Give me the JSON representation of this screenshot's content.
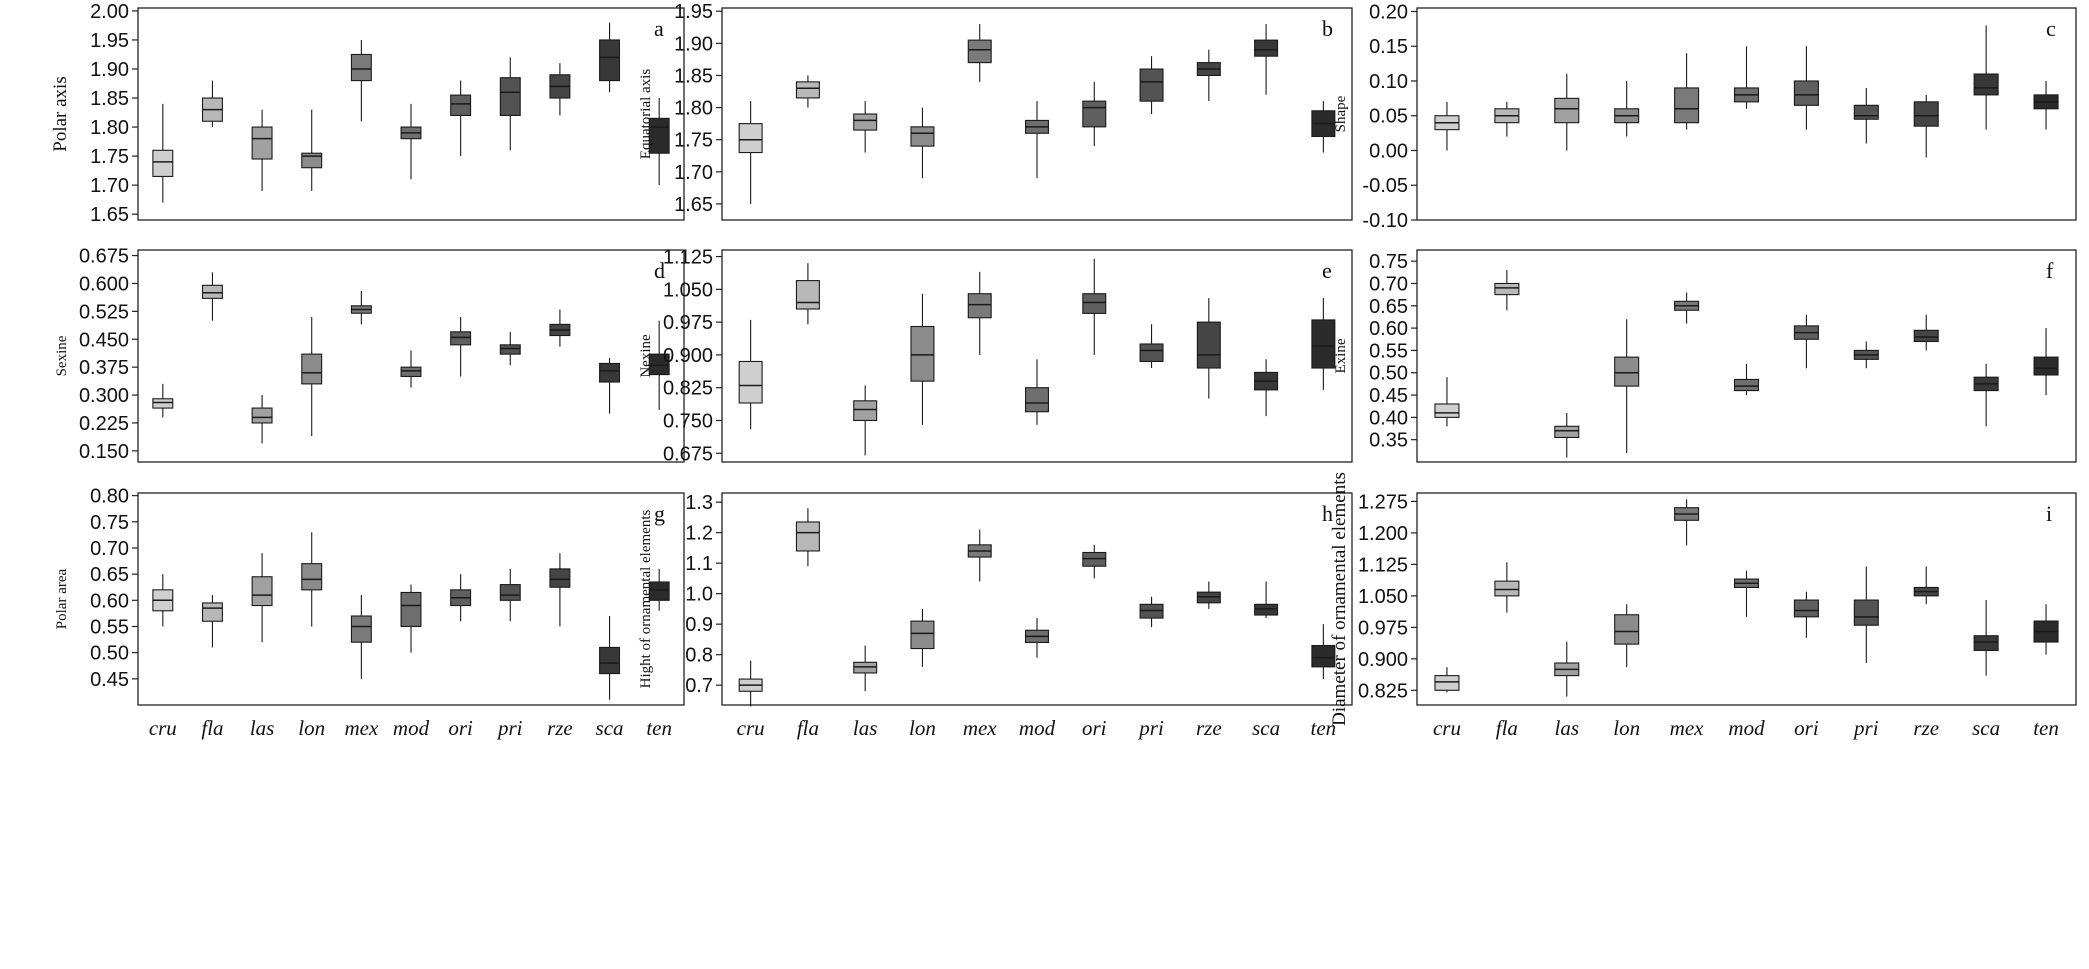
{
  "chart_data": [
    {
      "type": "box",
      "panel": "a",
      "ylabel": "Polar axis",
      "ylim": [
        1.64,
        2.005
      ],
      "yticks": [
        "1.65",
        "1.70",
        "1.75",
        "1.80",
        "1.85",
        "1.90",
        "1.95",
        "2.00"
      ],
      "categories": [
        "cru",
        "fla",
        "las",
        "lon",
        "mex",
        "mod",
        "ori",
        "pri",
        "rze",
        "sca",
        "ten"
      ],
      "boxes": [
        {
          "min": 1.67,
          "q1": 1.715,
          "median": 1.74,
          "q3": 1.76,
          "max": 1.84
        },
        {
          "min": 1.8,
          "q1": 1.81,
          "median": 1.83,
          "q3": 1.85,
          "max": 1.88
        },
        {
          "min": 1.69,
          "q1": 1.745,
          "median": 1.78,
          "q3": 1.8,
          "max": 1.83
        },
        {
          "min": 1.69,
          "q1": 1.73,
          "median": 1.75,
          "q3": 1.755,
          "max": 1.83
        },
        {
          "min": 1.81,
          "q1": 1.88,
          "median": 1.9,
          "q3": 1.925,
          "max": 1.95
        },
        {
          "min": 1.71,
          "q1": 1.78,
          "median": 1.79,
          "q3": 1.8,
          "max": 1.84
        },
        {
          "min": 1.75,
          "q1": 1.82,
          "median": 1.84,
          "q3": 1.855,
          "max": 1.88
        },
        {
          "min": 1.76,
          "q1": 1.82,
          "median": 1.86,
          "q3": 1.885,
          "max": 1.92
        },
        {
          "min": 1.82,
          "q1": 1.85,
          "median": 1.87,
          "q3": 1.89,
          "max": 1.91
        },
        {
          "min": 1.86,
          "q1": 1.88,
          "median": 1.92,
          "q3": 1.95,
          "max": 1.98
        },
        {
          "min": 1.7,
          "q1": 1.755,
          "median": 1.8,
          "q3": 1.815,
          "max": 1.85
        }
      ]
    },
    {
      "type": "box",
      "panel": "b",
      "ylabel": "Equatorial axis",
      "ylim": [
        1.625,
        1.955
      ],
      "yticks": [
        "1.65",
        "1.70",
        "1.75",
        "1.80",
        "1.85",
        "1.90",
        "1.95"
      ],
      "categories": [
        "cru",
        "fla",
        "las",
        "lon",
        "mex",
        "mod",
        "ori",
        "pri",
        "rze",
        "sca",
        "ten"
      ],
      "boxes": [
        {
          "min": 1.65,
          "q1": 1.73,
          "median": 1.75,
          "q3": 1.775,
          "max": 1.81
        },
        {
          "min": 1.8,
          "q1": 1.815,
          "median": 1.83,
          "q3": 1.84,
          "max": 1.85
        },
        {
          "min": 1.73,
          "q1": 1.765,
          "median": 1.78,
          "q3": 1.79,
          "max": 1.81
        },
        {
          "min": 1.69,
          "q1": 1.74,
          "median": 1.76,
          "q3": 1.77,
          "max": 1.8
        },
        {
          "min": 1.84,
          "q1": 1.87,
          "median": 1.89,
          "q3": 1.905,
          "max": 1.93
        },
        {
          "min": 1.69,
          "q1": 1.76,
          "median": 1.77,
          "q3": 1.78,
          "max": 1.81
        },
        {
          "min": 1.74,
          "q1": 1.77,
          "median": 1.8,
          "q3": 1.81,
          "max": 1.84
        },
        {
          "min": 1.79,
          "q1": 1.81,
          "median": 1.84,
          "q3": 1.86,
          "max": 1.88
        },
        {
          "min": 1.81,
          "q1": 1.85,
          "median": 1.86,
          "q3": 1.87,
          "max": 1.89
        },
        {
          "min": 1.82,
          "q1": 1.88,
          "median": 1.89,
          "q3": 1.905,
          "max": 1.93
        },
        {
          "min": 1.73,
          "q1": 1.755,
          "median": 1.775,
          "q3": 1.795,
          "max": 1.81
        }
      ]
    },
    {
      "type": "box",
      "panel": "c",
      "ylabel": "Shape",
      "ylim": [
        -0.1,
        0.205
      ],
      "yticks": [
        "-0.10",
        "-0.05",
        "0.00",
        "0.05",
        "0.10",
        "0.15",
        "0.20"
      ],
      "categories": [
        "cru",
        "fla",
        "las",
        "lon",
        "mex",
        "mod",
        "ori",
        "pri",
        "rze",
        "sca",
        "ten"
      ],
      "boxes": [
        {
          "min": 0.0,
          "q1": 0.03,
          "median": 0.04,
          "q3": 0.05,
          "max": 0.07
        },
        {
          "min": 0.02,
          "q1": 0.04,
          "median": 0.05,
          "q3": 0.06,
          "max": 0.07
        },
        {
          "min": 0.0,
          "q1": 0.04,
          "median": 0.06,
          "q3": 0.075,
          "max": 0.11
        },
        {
          "min": 0.02,
          "q1": 0.04,
          "median": 0.05,
          "q3": 0.06,
          "max": 0.1
        },
        {
          "min": 0.03,
          "q1": 0.04,
          "median": 0.06,
          "q3": 0.09,
          "max": 0.14
        },
        {
          "min": 0.06,
          "q1": 0.07,
          "median": 0.08,
          "q3": 0.09,
          "max": 0.15
        },
        {
          "min": 0.03,
          "q1": 0.065,
          "median": 0.08,
          "q3": 0.1,
          "max": 0.15
        },
        {
          "min": 0.01,
          "q1": 0.045,
          "median": 0.05,
          "q3": 0.065,
          "max": 0.09
        },
        {
          "min": -0.01,
          "q1": 0.035,
          "median": 0.05,
          "q3": 0.07,
          "max": 0.08
        },
        {
          "min": 0.03,
          "q1": 0.08,
          "median": 0.09,
          "q3": 0.11,
          "max": 0.18
        },
        {
          "min": 0.03,
          "q1": 0.06,
          "median": 0.07,
          "q3": 0.08,
          "max": 0.1
        }
      ]
    },
    {
      "type": "box",
      "panel": "d",
      "ylabel": "Sexine",
      "ylim": [
        0.12,
        0.69
      ],
      "yticks": [
        "0.150",
        "0.225",
        "0.300",
        "0.375",
        "0.450",
        "0.525",
        "0.600",
        "0.675"
      ],
      "categories": [
        "cru",
        "fla",
        "las",
        "lon",
        "mex",
        "mod",
        "ori",
        "pri",
        "rze",
        "sca",
        "ten"
      ],
      "boxes": [
        {
          "min": 0.24,
          "q1": 0.265,
          "median": 0.28,
          "q3": 0.29,
          "max": 0.33
        },
        {
          "min": 0.5,
          "q1": 0.56,
          "median": 0.575,
          "q3": 0.595,
          "max": 0.63
        },
        {
          "min": 0.17,
          "q1": 0.225,
          "median": 0.24,
          "q3": 0.265,
          "max": 0.3
        },
        {
          "min": 0.19,
          "q1": 0.33,
          "median": 0.36,
          "q3": 0.41,
          "max": 0.51
        },
        {
          "min": 0.49,
          "q1": 0.52,
          "median": 0.53,
          "q3": 0.54,
          "max": 0.58
        },
        {
          "min": 0.32,
          "q1": 0.35,
          "median": 0.365,
          "q3": 0.375,
          "max": 0.42
        },
        {
          "min": 0.35,
          "q1": 0.435,
          "median": 0.455,
          "q3": 0.47,
          "max": 0.51
        },
        {
          "min": 0.38,
          "q1": 0.41,
          "median": 0.425,
          "q3": 0.435,
          "max": 0.47
        },
        {
          "min": 0.43,
          "q1": 0.46,
          "median": 0.475,
          "q3": 0.49,
          "max": 0.53
        },
        {
          "min": 0.25,
          "q1": 0.335,
          "median": 0.365,
          "q3": 0.385,
          "max": 0.4
        },
        {
          "min": 0.26,
          "q1": 0.355,
          "median": 0.38,
          "q3": 0.41,
          "max": 0.5
        }
      ]
    },
    {
      "type": "box",
      "panel": "e",
      "ylabel": "Nexine",
      "ylim": [
        0.655,
        1.14
      ],
      "yticks": [
        "0.675",
        "0.750",
        "0.825",
        "0.900",
        "0.975",
        "1.050",
        "1.125"
      ],
      "categories": [
        "cru",
        "fla",
        "las",
        "lon",
        "mex",
        "mod",
        "ori",
        "pri",
        "rze",
        "sca",
        "ten"
      ],
      "boxes": [
        {
          "min": 0.73,
          "q1": 0.79,
          "median": 0.83,
          "q3": 0.885,
          "max": 0.98
        },
        {
          "min": 0.97,
          "q1": 1.005,
          "median": 1.02,
          "q3": 1.07,
          "max": 1.11
        },
        {
          "min": 0.67,
          "q1": 0.75,
          "median": 0.775,
          "q3": 0.795,
          "max": 0.83
        },
        {
          "min": 0.74,
          "q1": 0.84,
          "median": 0.9,
          "q3": 0.965,
          "max": 1.04
        },
        {
          "min": 0.9,
          "q1": 0.985,
          "median": 1.015,
          "q3": 1.04,
          "max": 1.09
        },
        {
          "min": 0.74,
          "q1": 0.77,
          "median": 0.79,
          "q3": 0.825,
          "max": 0.89
        },
        {
          "min": 0.9,
          "q1": 0.995,
          "median": 1.02,
          "q3": 1.04,
          "max": 1.12
        },
        {
          "min": 0.87,
          "q1": 0.885,
          "median": 0.91,
          "q3": 0.925,
          "max": 0.97
        },
        {
          "min": 0.8,
          "q1": 0.87,
          "median": 0.9,
          "q3": 0.975,
          "max": 1.03
        },
        {
          "min": 0.76,
          "q1": 0.82,
          "median": 0.84,
          "q3": 0.86,
          "max": 0.89
        },
        {
          "min": 0.82,
          "q1": 0.87,
          "median": 0.92,
          "q3": 0.98,
          "max": 1.03
        }
      ]
    },
    {
      "type": "box",
      "panel": "f",
      "ylabel": "Exine",
      "ylim": [
        0.3,
        0.775
      ],
      "yticks": [
        "0.35",
        "0.40",
        "0.45",
        "0.50",
        "0.55",
        "0.60",
        "0.65",
        "0.70",
        "0.75"
      ],
      "categories": [
        "cru",
        "fla",
        "las",
        "lon",
        "mex",
        "mod",
        "ori",
        "pri",
        "rze",
        "sca",
        "ten"
      ],
      "boxes": [
        {
          "min": 0.38,
          "q1": 0.4,
          "median": 0.41,
          "q3": 0.43,
          "max": 0.49
        },
        {
          "min": 0.64,
          "q1": 0.675,
          "median": 0.69,
          "q3": 0.7,
          "max": 0.73
        },
        {
          "min": 0.31,
          "q1": 0.355,
          "median": 0.37,
          "q3": 0.38,
          "max": 0.41
        },
        {
          "min": 0.32,
          "q1": 0.47,
          "median": 0.5,
          "q3": 0.535,
          "max": 0.62
        },
        {
          "min": 0.61,
          "q1": 0.64,
          "median": 0.65,
          "q3": 0.66,
          "max": 0.68
        },
        {
          "min": 0.45,
          "q1": 0.46,
          "median": 0.47,
          "q3": 0.485,
          "max": 0.52
        },
        {
          "min": 0.51,
          "q1": 0.575,
          "median": 0.59,
          "q3": 0.605,
          "max": 0.63
        },
        {
          "min": 0.51,
          "q1": 0.53,
          "median": 0.54,
          "q3": 0.55,
          "max": 0.57
        },
        {
          "min": 0.55,
          "q1": 0.57,
          "median": 0.58,
          "q3": 0.595,
          "max": 0.63
        },
        {
          "min": 0.38,
          "q1": 0.46,
          "median": 0.475,
          "q3": 0.49,
          "max": 0.52
        },
        {
          "min": 0.45,
          "q1": 0.495,
          "median": 0.51,
          "q3": 0.535,
          "max": 0.6
        }
      ]
    },
    {
      "type": "box",
      "panel": "g",
      "ylabel": "Polar area",
      "ylim": [
        0.4,
        0.805
      ],
      "yticks": [
        "0.45",
        "0.50",
        "0.55",
        "0.60",
        "0.65",
        "0.70",
        "0.75",
        "0.80"
      ],
      "categories": [
        "cru",
        "fla",
        "las",
        "lon",
        "mex",
        "mod",
        "ori",
        "pri",
        "rze",
        "sca",
        "ten"
      ],
      "boxes": [
        {
          "min": 0.55,
          "q1": 0.58,
          "median": 0.6,
          "q3": 0.62,
          "max": 0.65
        },
        {
          "min": 0.51,
          "q1": 0.56,
          "median": 0.585,
          "q3": 0.595,
          "max": 0.61
        },
        {
          "min": 0.52,
          "q1": 0.59,
          "median": 0.61,
          "q3": 0.645,
          "max": 0.69
        },
        {
          "min": 0.55,
          "q1": 0.62,
          "median": 0.64,
          "q3": 0.67,
          "max": 0.73
        },
        {
          "min": 0.45,
          "q1": 0.52,
          "median": 0.55,
          "q3": 0.57,
          "max": 0.61
        },
        {
          "min": 0.5,
          "q1": 0.55,
          "median": 0.59,
          "q3": 0.615,
          "max": 0.63
        },
        {
          "min": 0.56,
          "q1": 0.59,
          "median": 0.605,
          "q3": 0.62,
          "max": 0.65
        },
        {
          "min": 0.56,
          "q1": 0.6,
          "median": 0.61,
          "q3": 0.63,
          "max": 0.66
        },
        {
          "min": 0.55,
          "q1": 0.625,
          "median": 0.64,
          "q3": 0.66,
          "max": 0.69
        },
        {
          "min": 0.41,
          "q1": 0.46,
          "median": 0.48,
          "q3": 0.51,
          "max": 0.57
        },
        {
          "min": 0.58,
          "q1": 0.6,
          "median": 0.62,
          "q3": 0.635,
          "max": 0.66
        }
      ]
    },
    {
      "type": "box",
      "panel": "h",
      "ylabel": "Hight of ornamental elements",
      "ylim": [
        0.635,
        1.33
      ],
      "yticks": [
        "0.7",
        "0.8",
        "0.9",
        "1.0",
        "1.1",
        "1.2",
        "1.3"
      ],
      "categories": [
        "cru",
        "fla",
        "las",
        "lon",
        "mex",
        "mod",
        "ori",
        "pri",
        "rze",
        "sca",
        "ten"
      ],
      "boxes": [
        {
          "min": 0.63,
          "q1": 0.68,
          "median": 0.7,
          "q3": 0.72,
          "max": 0.78
        },
        {
          "min": 1.09,
          "q1": 1.14,
          "median": 1.2,
          "q3": 1.235,
          "max": 1.28
        },
        {
          "min": 0.68,
          "q1": 0.74,
          "median": 0.76,
          "q3": 0.775,
          "max": 0.83
        },
        {
          "min": 0.76,
          "q1": 0.82,
          "median": 0.87,
          "q3": 0.91,
          "max": 0.95
        },
        {
          "min": 1.04,
          "q1": 1.12,
          "median": 1.14,
          "q3": 1.16,
          "max": 1.21
        },
        {
          "min": 0.79,
          "q1": 0.84,
          "median": 0.86,
          "q3": 0.88,
          "max": 0.92
        },
        {
          "min": 1.05,
          "q1": 1.09,
          "median": 1.115,
          "q3": 1.135,
          "max": 1.16
        },
        {
          "min": 0.89,
          "q1": 0.92,
          "median": 0.945,
          "q3": 0.965,
          "max": 0.99
        },
        {
          "min": 0.95,
          "q1": 0.97,
          "median": 0.99,
          "q3": 1.005,
          "max": 1.04
        },
        {
          "min": 0.92,
          "q1": 0.93,
          "median": 0.95,
          "q3": 0.965,
          "max": 1.04
        },
        {
          "min": 0.72,
          "q1": 0.76,
          "median": 0.79,
          "q3": 0.83,
          "max": 0.9
        }
      ]
    },
    {
      "type": "box",
      "panel": "i",
      "ylabel": "Diameter of ornamental elements",
      "ylim": [
        0.79,
        1.295
      ],
      "yticks": [
        "0.825",
        "0.900",
        "0.975",
        "1.050",
        "1.125",
        "1.200",
        "1.275"
      ],
      "categories": [
        "cru",
        "fla",
        "las",
        "lon",
        "mex",
        "mod",
        "ori",
        "pri",
        "rze",
        "sca",
        "ten"
      ],
      "boxes": [
        {
          "min": 0.82,
          "q1": 0.825,
          "median": 0.845,
          "q3": 0.86,
          "max": 0.88
        },
        {
          "min": 1.01,
          "q1": 1.05,
          "median": 1.065,
          "q3": 1.085,
          "max": 1.13
        },
        {
          "min": 0.81,
          "q1": 0.86,
          "median": 0.875,
          "q3": 0.89,
          "max": 0.94
        },
        {
          "min": 0.88,
          "q1": 0.935,
          "median": 0.965,
          "q3": 1.005,
          "max": 1.03
        },
        {
          "min": 1.17,
          "q1": 1.23,
          "median": 1.245,
          "q3": 1.26,
          "max": 1.28
        },
        {
          "min": 1.0,
          "q1": 1.07,
          "median": 1.08,
          "q3": 1.09,
          "max": 1.11
        },
        {
          "min": 0.95,
          "q1": 1.0,
          "median": 1.015,
          "q3": 1.04,
          "max": 1.06
        },
        {
          "min": 0.89,
          "q1": 0.98,
          "median": 1.0,
          "q3": 1.04,
          "max": 1.12
        },
        {
          "min": 1.03,
          "q1": 1.05,
          "median": 1.06,
          "q3": 1.07,
          "max": 1.12
        },
        {
          "min": 0.86,
          "q1": 0.92,
          "median": 0.94,
          "q3": 0.955,
          "max": 1.04
        },
        {
          "min": 0.91,
          "q1": 0.94,
          "median": 0.965,
          "q3": 0.99,
          "max": 1.03
        }
      ]
    }
  ],
  "style": {
    "box_colors": [
      "#cfcfcf",
      "#b8b8b8",
      "#a1a1a1",
      "#8c8c8c",
      "#7a7a7a",
      "#6e6e6e",
      "#5f5f5f",
      "#535353",
      "#454545",
      "#383838",
      "#2b2b2b"
    ],
    "line_color": "#1a1a1a",
    "background": "#ffffff"
  }
}
